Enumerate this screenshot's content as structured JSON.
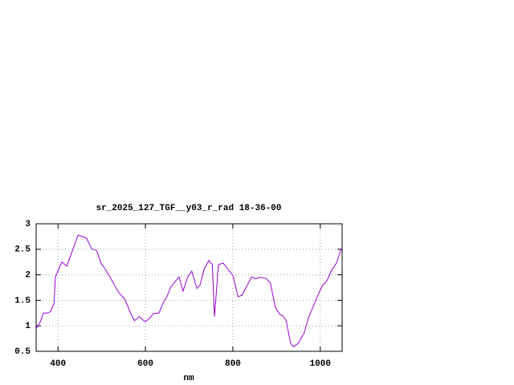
{
  "chart_data": {
    "type": "line",
    "title": "sr_2025_127_TGF__y03_r_rad 18-36-00",
    "x_label": "nm",
    "xlim": [
      350,
      1050
    ],
    "xticks": [
      400,
      600,
      800,
      1000
    ],
    "ylim": [
      0.5,
      3
    ],
    "yticks": [
      0.5,
      1,
      1.5,
      2,
      2.5,
      3
    ],
    "grid": true,
    "series": [
      {
        "color": "#9400d3",
        "x": [
          350,
          359,
          367,
          376,
          383,
          391,
          394,
          409,
          420,
          446,
          465,
          477,
          489,
          498,
          509,
          524,
          538,
          553,
          566,
          575,
          586,
          599,
          609,
          618,
          631,
          640,
          649,
          658,
          677,
          686,
          697,
          706,
          718,
          725,
          734,
          745,
          753,
          758,
          767,
          778,
          790,
          800,
          812,
          821,
          843,
          852,
          862,
          876,
          886,
          897,
          908,
          915,
          922,
          932,
          939,
          950,
          963,
          974,
          983,
          993,
          1005,
          1015,
          1026,
          1037,
          1048
        ],
        "values": [
          0.94,
          1.07,
          1.25,
          1.25,
          1.28,
          1.44,
          1.96,
          2.25,
          2.17,
          2.78,
          2.72,
          2.51,
          2.47,
          2.23,
          2.1,
          1.88,
          1.66,
          1.52,
          1.25,
          1.1,
          1.18,
          1.08,
          1.14,
          1.24,
          1.25,
          1.44,
          1.57,
          1.76,
          1.96,
          1.68,
          1.96,
          2.07,
          1.73,
          1.8,
          2.1,
          2.28,
          2.2,
          1.18,
          2.2,
          2.23,
          2.09,
          1.99,
          1.57,
          1.6,
          1.96,
          1.92,
          1.95,
          1.93,
          1.84,
          1.36,
          1.22,
          1.19,
          1.1,
          0.66,
          0.59,
          0.66,
          0.86,
          1.18,
          1.36,
          1.57,
          1.79,
          1.88,
          2.09,
          2.23,
          2.51
        ]
      }
    ]
  }
}
